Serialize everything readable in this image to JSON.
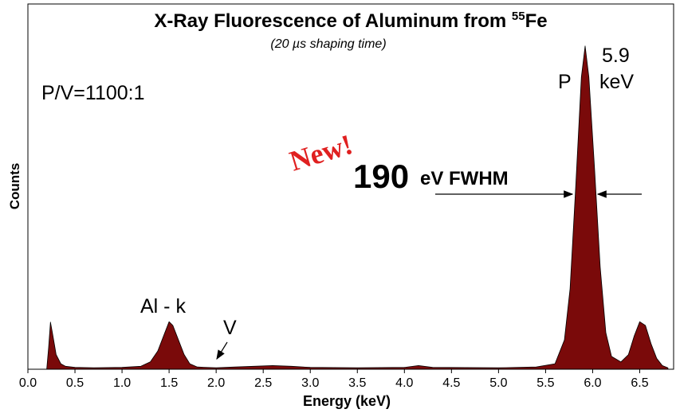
{
  "chart_data": {
    "type": "area",
    "title": "X-Ray Fluorescence of Aluminum from ",
    "title_superscript": "55",
    "title_suffix": "Fe",
    "subtitle": "(20 µs shaping time)",
    "x_label": "Energy (keV)",
    "y_label": "Counts",
    "annotations": [
      "P/V=1100:1",
      "New!",
      "190",
      "eV FWHM",
      "Al - k",
      "V",
      "P",
      "5.9",
      "keV"
    ],
    "xlim": [
      0,
      6.86
    ],
    "ylim": [
      0,
      100
    ],
    "xticks": [
      {
        "value": 0,
        "label": "0.0"
      },
      0.5,
      {
        "value": 1,
        "label": "1.0"
      },
      1.5,
      {
        "value": 2,
        "label": "2.0"
      },
      2.5,
      {
        "value": 3,
        "label": "3.0"
      },
      3.5,
      {
        "value": 4,
        "label": "4.0"
      },
      4.5,
      {
        "value": 5,
        "label": "5.0"
      },
      5.5,
      {
        "value": 6,
        "label": "6.0"
      },
      6.5
    ],
    "color": "#7a0a0a",
    "x": [
      0.2,
      0.22,
      0.24,
      0.26,
      0.28,
      0.3,
      0.35,
      0.4,
      0.5,
      0.7,
      1.0,
      1.2,
      1.3,
      1.38,
      1.44,
      1.5,
      1.54,
      1.6,
      1.66,
      1.72,
      1.8,
      2.0,
      2.2,
      2.4,
      2.6,
      2.8,
      3.0,
      3.5,
      4.0,
      4.15,
      4.3,
      5.0,
      5.4,
      5.6,
      5.7,
      5.76,
      5.82,
      5.88,
      5.92,
      5.96,
      6.02,
      6.08,
      6.14,
      6.2,
      6.3,
      6.38,
      6.44,
      6.5,
      6.56,
      6.62,
      6.68,
      6.74,
      6.8
    ],
    "values": [
      0,
      6,
      12.9,
      10,
      7,
      4,
      1.5,
      0.8,
      0.5,
      0.4,
      0.5,
      0.8,
      2,
      5,
      9,
      13,
      12,
      8,
      4,
      1.5,
      0.6,
      0.4,
      0.6,
      0.8,
      1,
      0.8,
      0.5,
      0.4,
      0.5,
      1,
      0.5,
      0.4,
      0.6,
      1.5,
      8,
      22,
      50,
      80,
      88.5,
      80,
      55,
      28,
      10,
      3.5,
      2,
      4,
      9,
      13,
      12,
      7,
      3,
      1,
      0.4
    ]
  }
}
